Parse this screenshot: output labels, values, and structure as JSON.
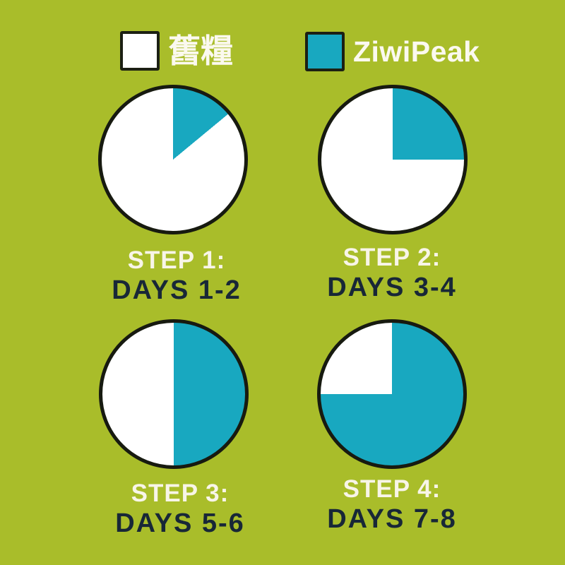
{
  "colors": {
    "background": "#a9bd2a",
    "ziwipeak_teal": "#18a8c0",
    "old_food_white": "#ffffff",
    "pie_stroke": "#171a10",
    "step_text": "#f8f5e8",
    "days_text": "#182737"
  },
  "legend": {
    "items": [
      {
        "color_key": "old_food_white",
        "label": "舊糧"
      },
      {
        "color_key": "ziwipeak_teal",
        "label": "ZiwiPeak"
      }
    ]
  },
  "chart_data": [
    {
      "type": "pie",
      "title": "STEP 1:",
      "subtitle": "DAYS 1-2",
      "start_angle": "top",
      "direction": "clockwise",
      "slices": [
        {
          "label": "ZiwiPeak",
          "pct": 14
        },
        {
          "label": "舊糧",
          "pct": 86
        }
      ]
    },
    {
      "type": "pie",
      "title": "STEP 2:",
      "subtitle": "DAYS 3-4",
      "start_angle": "top",
      "direction": "clockwise",
      "slices": [
        {
          "label": "ZiwiPeak",
          "pct": 25
        },
        {
          "label": "舊糧",
          "pct": 75
        }
      ]
    },
    {
      "type": "pie",
      "title": "STEP 3:",
      "subtitle": "DAYS 5-6",
      "start_angle": "top",
      "direction": "clockwise",
      "slices": [
        {
          "label": "ZiwiPeak",
          "pct": 50
        },
        {
          "label": "舊糧",
          "pct": 50
        }
      ]
    },
    {
      "type": "pie",
      "title": "STEP 4:",
      "subtitle": "DAYS 7-8",
      "start_angle": "top",
      "direction": "clockwise",
      "slices": [
        {
          "label": "ZiwiPeak",
          "pct": 75
        },
        {
          "label": "舊糧",
          "pct": 25
        }
      ]
    }
  ]
}
